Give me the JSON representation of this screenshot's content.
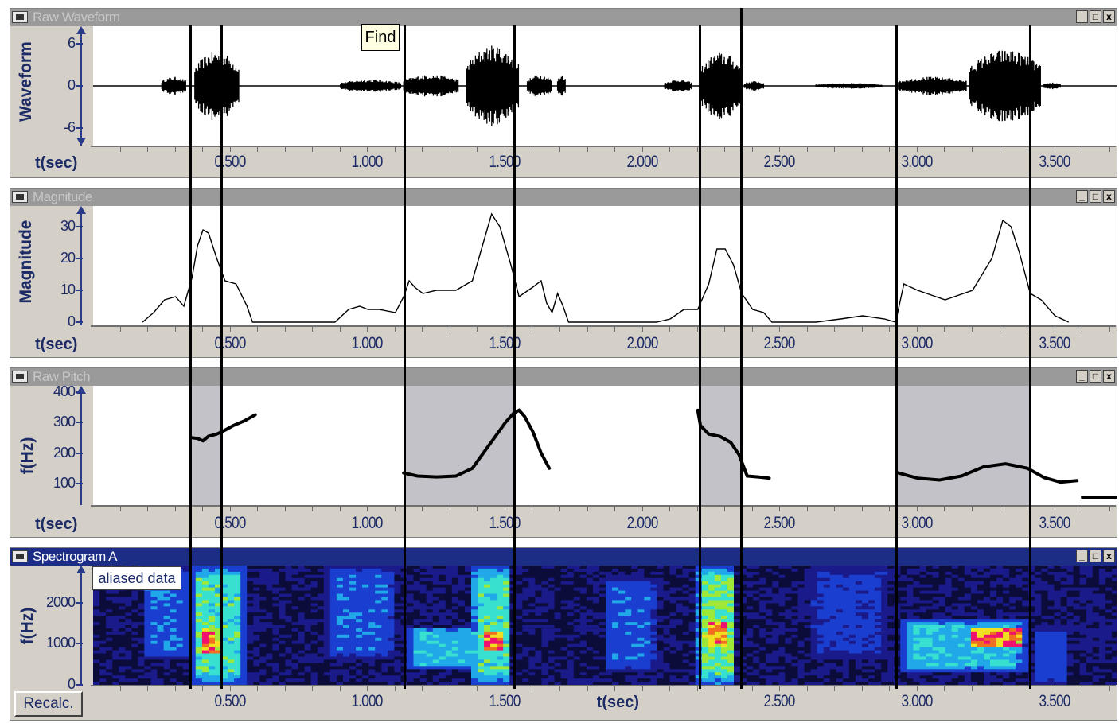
{
  "tooltip": "Find",
  "recalc_label": "Recalc.",
  "aliased_label": "aliased data",
  "window_buttons": {
    "minimize": "_",
    "restore": "□",
    "close": "x"
  },
  "x_axis": {
    "label": "t(sec)",
    "ticks": [
      "0.500",
      "1.000",
      "1.500",
      "2.000",
      "2.500",
      "3.000",
      "3.500"
    ],
    "tick_values": [
      0.5,
      1.0,
      1.5,
      2.0,
      2.5,
      3.0,
      3.5
    ]
  },
  "panels": [
    {
      "key": "waveform",
      "title": "Raw Waveform",
      "y_label": "Waveform",
      "y_ticks": [
        "6",
        "0",
        "-6"
      ],
      "y_tick_values": [
        6,
        0,
        -6
      ],
      "ylim": [
        -8.5,
        8.5
      ],
      "active": false
    },
    {
      "key": "magnitude",
      "title": "Magnitude",
      "y_label": "Magnitude",
      "y_ticks": [
        "30",
        "20",
        "10",
        "0"
      ],
      "y_tick_values": [
        30,
        20,
        10,
        0
      ],
      "ylim": [
        0,
        35
      ],
      "active": false
    },
    {
      "key": "pitch",
      "title": "Raw Pitch",
      "y_label": "f(Hz)",
      "y_ticks": [
        "400",
        "300",
        "200",
        "100"
      ],
      "y_tick_values": [
        400,
        300,
        200,
        100
      ],
      "ylim": [
        30,
        420
      ],
      "active": false
    },
    {
      "key": "spectrogram",
      "title": "Spectrogram A",
      "y_label": "f(Hz)",
      "y_ticks": [
        "2000",
        "1000",
        "0"
      ],
      "y_tick_values": [
        2000,
        1000,
        0
      ],
      "ylim": [
        0,
        2900
      ],
      "active": true
    }
  ],
  "colors": {
    "axis_text": "#1c2a66",
    "active_title": "#1c2d86",
    "inactive_title": "#9a9a9a",
    "pitch_shade": "#c2c2c8"
  },
  "cursors_sec": [
    0.355,
    0.47,
    1.135,
    1.535,
    2.21,
    2.36,
    2.925,
    3.41
  ],
  "voiced_segments_sec": [
    [
      0.355,
      0.47
    ],
    [
      1.135,
      1.535
    ],
    [
      2.21,
      2.36
    ],
    [
      2.925,
      3.41
    ]
  ],
  "chart_data": {
    "type": "line",
    "x_range_sec": [
      0.0,
      3.73
    ],
    "magnitude": {
      "x": [
        0.18,
        0.22,
        0.26,
        0.3,
        0.33,
        0.36,
        0.38,
        0.4,
        0.42,
        0.45,
        0.48,
        0.52,
        0.56,
        0.58,
        0.88,
        0.93,
        0.97,
        1.0,
        1.04,
        1.1,
        1.13,
        1.15,
        1.17,
        1.2,
        1.25,
        1.32,
        1.38,
        1.42,
        1.45,
        1.48,
        1.52,
        1.55,
        1.6,
        1.63,
        1.65,
        1.67,
        1.69,
        1.71,
        1.73,
        2.05,
        2.1,
        2.15,
        2.2,
        2.24,
        2.27,
        2.3,
        2.33,
        2.36,
        2.4,
        2.44,
        2.47,
        2.63,
        2.72,
        2.8,
        2.88,
        2.92,
        2.95,
        3.0,
        3.1,
        3.2,
        3.27,
        3.31,
        3.34,
        3.37,
        3.41,
        3.45,
        3.5,
        3.55
      ],
      "y": [
        0,
        3,
        7,
        8,
        5,
        14,
        24,
        29,
        28,
        20,
        13,
        12,
        5,
        0,
        0,
        4,
        5,
        4,
        4,
        3,
        8,
        13,
        11,
        9,
        10,
        10,
        13,
        25,
        34,
        30,
        18,
        8,
        11,
        13,
        6,
        3,
        9,
        5,
        0,
        0,
        1,
        4,
        4,
        12,
        23,
        23,
        18,
        9,
        4,
        3,
        0,
        0,
        1,
        2,
        1,
        0,
        12,
        10,
        7,
        10,
        20,
        32,
        30,
        22,
        9,
        7,
        2,
        0
      ]
    },
    "pitch": {
      "segments": [
        {
          "x": [
            0.36,
            0.38,
            0.4,
            0.42,
            0.45,
            0.48,
            0.51,
            0.55,
            0.59
          ],
          "y": [
            250,
            248,
            240,
            255,
            262,
            275,
            290,
            305,
            325
          ]
        },
        {
          "x": [
            1.13,
            1.18,
            1.25,
            1.32,
            1.38,
            1.42,
            1.46,
            1.5,
            1.53,
            1.55,
            1.57,
            1.6,
            1.63,
            1.66
          ],
          "y": [
            135,
            125,
            122,
            125,
            150,
            200,
            250,
            300,
            330,
            340,
            320,
            270,
            200,
            150
          ]
        },
        {
          "x": [
            2.2,
            2.21,
            2.24,
            2.28,
            2.32,
            2.35,
            2.38,
            2.42,
            2.46
          ],
          "y": [
            340,
            290,
            262,
            255,
            235,
            195,
            125,
            122,
            118
          ]
        },
        {
          "x": [
            2.93,
            3.0,
            3.08,
            3.16,
            3.24,
            3.32,
            3.4,
            3.46,
            3.52,
            3.58
          ],
          "y": [
            135,
            118,
            112,
            125,
            155,
            165,
            150,
            120,
            105,
            110
          ]
        },
        {
          "x": [
            3.6,
            3.72
          ],
          "y": [
            55,
            55
          ]
        }
      ]
    },
    "waveform": {
      "bursts": [
        {
          "start": 0.25,
          "end": 0.34,
          "amp": 1.3
        },
        {
          "start": 0.37,
          "end": 0.53,
          "amp": 5.0
        },
        {
          "start": 0.9,
          "end": 1.12,
          "amp": 0.9
        },
        {
          "start": 1.13,
          "end": 1.33,
          "amp": 1.6
        },
        {
          "start": 1.36,
          "end": 1.55,
          "amp": 5.8
        },
        {
          "start": 1.58,
          "end": 1.67,
          "amp": 1.6
        },
        {
          "start": 1.69,
          "end": 1.72,
          "amp": 1.6
        },
        {
          "start": 2.08,
          "end": 2.18,
          "amp": 0.9
        },
        {
          "start": 2.21,
          "end": 2.36,
          "amp": 4.8
        },
        {
          "start": 2.37,
          "end": 2.44,
          "amp": 0.7
        },
        {
          "start": 2.63,
          "end": 2.87,
          "amp": 0.4
        },
        {
          "start": 2.93,
          "end": 3.18,
          "amp": 1.3
        },
        {
          "start": 3.19,
          "end": 3.45,
          "amp": 5.2
        },
        {
          "start": 3.46,
          "end": 3.52,
          "amp": 0.5
        }
      ]
    },
    "spectrogram": {
      "blobs": [
        {
          "t0": 0.18,
          "t1": 0.35,
          "f0": 600,
          "f1": 2900,
          "level": 0.45
        },
        {
          "t0": 0.36,
          "t1": 0.55,
          "f0": 0,
          "f1": 2900,
          "level": 0.7
        },
        {
          "t0": 0.4,
          "t1": 0.46,
          "f0": 700,
          "f1": 1400,
          "level": 1.0
        },
        {
          "t0": 0.85,
          "t1": 1.1,
          "f0": 600,
          "f1": 2900,
          "level": 0.45
        },
        {
          "t0": 1.14,
          "t1": 1.5,
          "f0": 400,
          "f1": 1400,
          "level": 0.6
        },
        {
          "t0": 1.38,
          "t1": 1.52,
          "f0": 0,
          "f1": 2900,
          "level": 0.7
        },
        {
          "t0": 1.41,
          "t1": 1.5,
          "f0": 800,
          "f1": 1300,
          "level": 1.0
        },
        {
          "t0": 1.86,
          "t1": 2.05,
          "f0": 300,
          "f1": 2600,
          "level": 0.45
        },
        {
          "t0": 2.2,
          "t1": 2.34,
          "f0": 0,
          "f1": 2900,
          "level": 0.75
        },
        {
          "t0": 2.22,
          "t1": 2.31,
          "f0": 900,
          "f1": 1600,
          "level": 1.0
        },
        {
          "t0": 2.6,
          "t1": 2.9,
          "f0": 600,
          "f1": 2900,
          "level": 0.35
        },
        {
          "t0": 2.93,
          "t1": 3.4,
          "f0": 300,
          "f1": 1600,
          "level": 0.6
        },
        {
          "t0": 3.18,
          "t1": 3.39,
          "f0": 900,
          "f1": 1400,
          "level": 1.0
        },
        {
          "t0": 3.42,
          "t1": 3.55,
          "f0": 0,
          "f1": 1400,
          "level": 0.4
        }
      ]
    }
  }
}
